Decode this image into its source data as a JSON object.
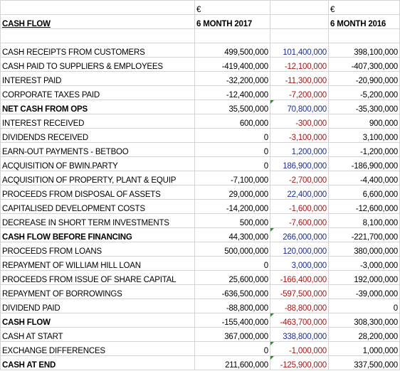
{
  "header": {
    "currency_2017": "€",
    "currency_2016": "€",
    "title": "CASH FLOW",
    "period_2017": "6 MONTH 2017",
    "period_2016": "6 MONTH 2016"
  },
  "rows": [
    {
      "label": "CASH RECEIPTS FROM CUSTOMERS",
      "v2017": "499,500,000",
      "diff": "101,400,000",
      "v2016": "398,100,000",
      "sign": "pos",
      "bold": false
    },
    {
      "label": "CASH PAID TO SUPPLIERS & EMPLOYEES",
      "v2017": "-419,400,000",
      "diff": "-12,100,000",
      "v2016": "-407,300,000",
      "sign": "neg",
      "bold": false
    },
    {
      "label": "INTEREST PAID",
      "v2017": "-32,200,000",
      "diff": "-11,300,000",
      "v2016": "-20,900,000",
      "sign": "neg",
      "bold": false
    },
    {
      "label": "CORPORATE TAXES PAID",
      "v2017": "-12,400,000",
      "diff": "-7,200,000",
      "v2016": "-5,200,000",
      "sign": "neg",
      "bold": false
    },
    {
      "label": "NET CASH FROM OPS",
      "v2017": "35,500,000",
      "diff": "70,800,000",
      "v2016": "-35,300,000",
      "sign": "pos",
      "bold": true,
      "marker": true
    },
    {
      "label": "INTEREST RECEIVED",
      "v2017": "600,000",
      "diff": "-300,000",
      "v2016": "900,000",
      "sign": "neg",
      "bold": false
    },
    {
      "label": "DIVIDENDS RECEIVED",
      "v2017": "0",
      "diff": "-3,100,000",
      "v2016": "3,100,000",
      "sign": "neg",
      "bold": false
    },
    {
      "label": "EARN-OUT PAYMENTS - BETBOO",
      "v2017": "0",
      "diff": "1,200,000",
      "v2016": "-1,200,000",
      "sign": "pos",
      "bold": false
    },
    {
      "label": "ACQUISITION OF BWIN.PARTY",
      "v2017": "0",
      "diff": "186,900,000",
      "v2016": "-186,900,000",
      "sign": "pos",
      "bold": false
    },
    {
      "label": "ACQUISITION OF PROPERTY, PLANT & EQUIP",
      "v2017": "-7,100,000",
      "diff": "-2,700,000",
      "v2016": "-4,400,000",
      "sign": "neg",
      "bold": false
    },
    {
      "label": "PROCEEDS FROM DISPOSAL OF ASSETS",
      "v2017": "29,000,000",
      "diff": "22,400,000",
      "v2016": "6,600,000",
      "sign": "pos",
      "bold": false
    },
    {
      "label": "CAPITALISED DEVELOPMENT COSTS",
      "v2017": "-14,200,000",
      "diff": "-1,600,000",
      "v2016": "-12,600,000",
      "sign": "neg",
      "bold": false
    },
    {
      "label": "DECREASE IN SHORT TERM INVESTMENTS",
      "v2017": "500,000",
      "diff": "-7,600,000",
      "v2016": "8,100,000",
      "sign": "neg",
      "bold": false
    },
    {
      "label": "CASH FLOW BEFORE FINANCING",
      "v2017": "44,300,000",
      "diff": "266,000,000",
      "v2016": "-221,700,000",
      "sign": "pos",
      "bold": true,
      "marker": true
    },
    {
      "label": "PROCEEDS FROM LOANS",
      "v2017": "500,000,000",
      "diff": "120,000,000",
      "v2016": "380,000,000",
      "sign": "pos",
      "bold": false
    },
    {
      "label": "REPAYMENT OF WILLIAM HILL LOAN",
      "v2017": "0",
      "diff": "3,000,000",
      "v2016": "-3,000,000",
      "sign": "pos",
      "bold": false
    },
    {
      "label": "PROCEEDS FROM ISSUE OF SHARE CAPITAL",
      "v2017": "25,600,000",
      "diff": "-166,400,000",
      "v2016": "192,000,000",
      "sign": "neg",
      "bold": false
    },
    {
      "label": "REPAYMENT OF BORROWINGS",
      "v2017": "-636,500,000",
      "diff": "-597,500,000",
      "v2016": "-39,000,000",
      "sign": "neg",
      "bold": false
    },
    {
      "label": "DIVIDEND PAID",
      "v2017": "-88,800,000",
      "diff": "-88,800,000",
      "v2016": "0",
      "sign": "neg",
      "bold": false
    },
    {
      "label": "CASH FLOW",
      "v2017": "-155,400,000",
      "diff": "-463,700,000",
      "v2016": "308,300,000",
      "sign": "neg",
      "bold": true,
      "marker": true
    },
    {
      "label": "CASH AT START",
      "v2017": "367,000,000",
      "diff": "338,800,000",
      "v2016": "28,200,000",
      "sign": "pos",
      "bold": false
    },
    {
      "label": "EXCHANGE DIFFERENCES",
      "v2017": "0",
      "diff": "-1,000,000",
      "v2016": "1,000,000",
      "sign": "neg",
      "bold": false,
      "marker": true
    },
    {
      "label": "CASH AT END",
      "v2017": "211,600,000",
      "diff": "-125,900,000",
      "v2016": "337,500,000",
      "sign": "neg",
      "bold": true,
      "marker": true
    }
  ],
  "colors": {
    "positive_diff": "#1f2d8c",
    "negative_diff": "#a01818",
    "comment_marker": "#2e8b2e",
    "gridline": "#d4d4d4"
  }
}
